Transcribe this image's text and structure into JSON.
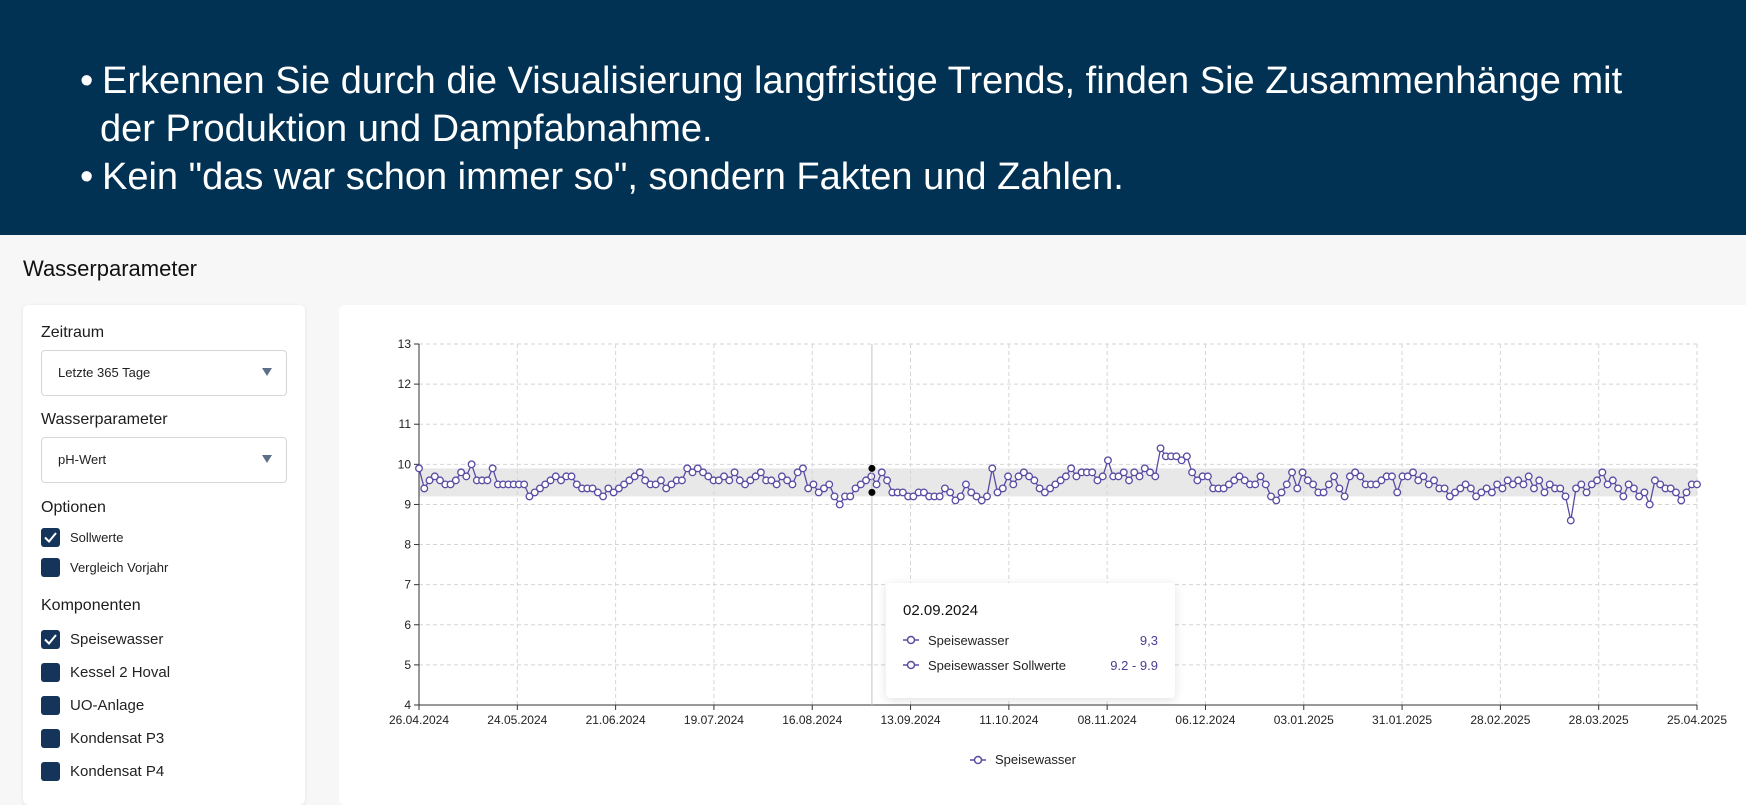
{
  "banner": {
    "line1": "Erkennen Sie durch die Visualisierung langfristige Trends, finden Sie Zusammenhänge mit",
    "line2": "der Produktion und Dampfabnahme.",
    "line3": "Kein \"das war schon immer so\", sondern Fakten und Zahlen.",
    "bullet": "•",
    "background_color": "#013253"
  },
  "page": {
    "title": "Wasserparameter"
  },
  "filters": {
    "zeitraum_label": "Zeitraum",
    "zeitraum_value": "Letzte 365 Tage",
    "parameter_label": "Wasserparameter",
    "parameter_value": "pH-Wert",
    "optionen_label": "Optionen",
    "optionen": [
      {
        "label": "Sollwerte",
        "checked": true
      },
      {
        "label": "Vergleich Vorjahr",
        "checked": false
      }
    ],
    "komponenten_label": "Komponenten",
    "komponenten": [
      {
        "label": "Speisewasser",
        "checked": true
      },
      {
        "label": "Kessel 2 Hoval",
        "checked": false
      },
      {
        "label": "UO-Anlage",
        "checked": false
      },
      {
        "label": "Kondensat P3",
        "checked": false
      },
      {
        "label": "Kondensat P4",
        "checked": false
      }
    ],
    "checkbox_color": "#14345a"
  },
  "tooltip": {
    "date": "02.09.2024",
    "rows": [
      {
        "name": "Speisewasser",
        "value": "9,3"
      },
      {
        "name": "Speisewasser Sollwerte",
        "value": "9.2 - 9.9"
      }
    ]
  },
  "legend": {
    "label": "Speisewasser"
  },
  "chart_data": {
    "type": "line",
    "x_tick_labels": [
      "26.04.2024",
      "24.05.2024",
      "21.06.2024",
      "19.07.2024",
      "16.08.2024",
      "13.09.2024",
      "11.10.2024",
      "08.11.2024",
      "06.12.2024",
      "03.01.2025",
      "31.01.2025",
      "28.02.2025",
      "28.03.2025",
      "25.04.2025"
    ],
    "y_ticks": [
      4,
      5,
      6,
      7,
      8,
      9,
      10,
      11,
      12,
      13
    ],
    "ylim": [
      4,
      13
    ],
    "grid": true,
    "legend_position": "bottom-center",
    "series": [
      {
        "name": "Speisewasser",
        "color": "#5a4aa3",
        "values": [
          9.9,
          9.4,
          9.6,
          9.7,
          9.6,
          9.5,
          9.5,
          9.6,
          9.8,
          9.7,
          10.0,
          9.6,
          9.6,
          9.6,
          9.9,
          9.5,
          9.5,
          9.5,
          9.5,
          9.5,
          9.5,
          9.2,
          9.3,
          9.4,
          9.5,
          9.6,
          9.7,
          9.6,
          9.7,
          9.7,
          9.5,
          9.4,
          9.4,
          9.4,
          9.3,
          9.2,
          9.4,
          9.3,
          9.4,
          9.5,
          9.6,
          9.7,
          9.8,
          9.6,
          9.5,
          9.5,
          9.6,
          9.4,
          9.5,
          9.6,
          9.6,
          9.9,
          9.8,
          9.9,
          9.8,
          9.7,
          9.6,
          9.6,
          9.7,
          9.6,
          9.8,
          9.6,
          9.5,
          9.6,
          9.7,
          9.8,
          9.6,
          9.6,
          9.5,
          9.7,
          9.6,
          9.5,
          9.8,
          9.9,
          9.4,
          9.5,
          9.3,
          9.4,
          9.5,
          9.2,
          9.0,
          9.2,
          9.2,
          9.4,
          9.5,
          9.6,
          9.7,
          9.5,
          9.8,
          9.6,
          9.3,
          9.3,
          9.3,
          9.2,
          9.2,
          9.3,
          9.3,
          9.2,
          9.2,
          9.2,
          9.4,
          9.3,
          9.1,
          9.2,
          9.5,
          9.3,
          9.2,
          9.1,
          9.2,
          9.9,
          9.3,
          9.4,
          9.7,
          9.5,
          9.7,
          9.8,
          9.7,
          9.6,
          9.4,
          9.3,
          9.4,
          9.5,
          9.6,
          9.7,
          9.9,
          9.7,
          9.8,
          9.8,
          9.8,
          9.6,
          9.7,
          10.1,
          9.7,
          9.7,
          9.8,
          9.6,
          9.8,
          9.7,
          9.9,
          9.8,
          9.7,
          10.4,
          10.2,
          10.2,
          10.2,
          10.1,
          10.2,
          9.8,
          9.6,
          9.7,
          9.7,
          9.4,
          9.4,
          9.4,
          9.5,
          9.6,
          9.7,
          9.6,
          9.5,
          9.5,
          9.7,
          9.5,
          9.2,
          9.1,
          9.3,
          9.5,
          9.8,
          9.4,
          9.8,
          9.6,
          9.5,
          9.3,
          9.3,
          9.5,
          9.7,
          9.4,
          9.2,
          9.7,
          9.8,
          9.7,
          9.5,
          9.5,
          9.5,
          9.6,
          9.7,
          9.7,
          9.3,
          9.7,
          9.7,
          9.8,
          9.6,
          9.7,
          9.5,
          9.6,
          9.4,
          9.4,
          9.2,
          9.3,
          9.4,
          9.5,
          9.4,
          9.2,
          9.3,
          9.4,
          9.3,
          9.5,
          9.4,
          9.6,
          9.5,
          9.6,
          9.5,
          9.7,
          9.4,
          9.6,
          9.3,
          9.5,
          9.4,
          9.4,
          9.2,
          8.6,
          9.4,
          9.5,
          9.3,
          9.5,
          9.6,
          9.8,
          9.5,
          9.6,
          9.4,
          9.2,
          9.5,
          9.4,
          9.2,
          9.3,
          9.0,
          9.6,
          9.5,
          9.4,
          9.4,
          9.3,
          9.1,
          9.3,
          9.5,
          9.5
        ]
      }
    ],
    "setpoint_band": {
      "name": "Speisewasser Sollwerte",
      "min": 9.2,
      "max": 9.9,
      "color": "#e8e8e8"
    },
    "highlight_date": "02.09.2024"
  }
}
